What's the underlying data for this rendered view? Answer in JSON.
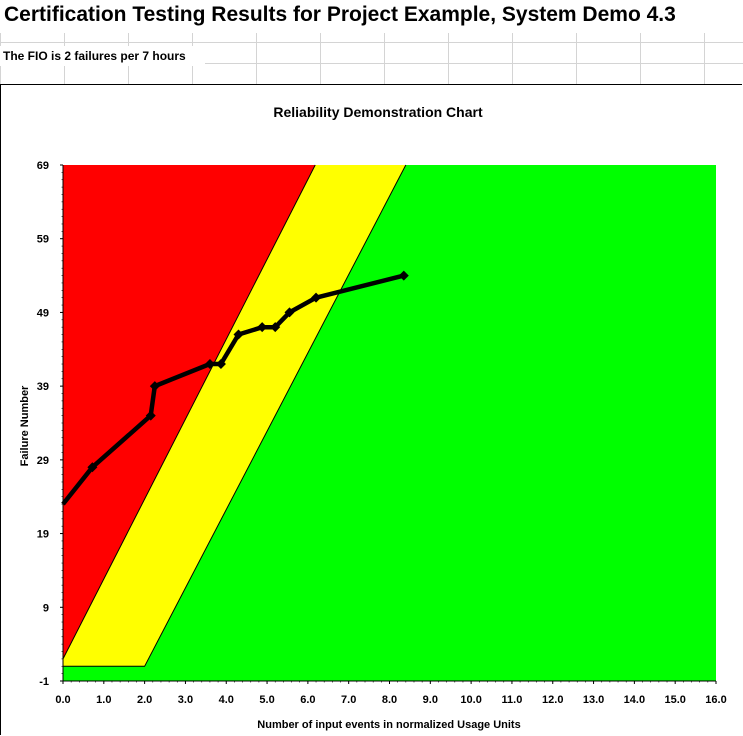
{
  "sheet": {
    "title": "Certification Testing Results for Project Example, System Demo 4.3",
    "fio_text": "The FIO is 2 failures per 7 hours"
  },
  "chart_data": {
    "type": "line",
    "title": "Reliability Demonstration Chart",
    "xlabel": "Number of input events in normalized Usage Units",
    "ylabel": "Failure Number",
    "xlim": [
      0,
      16
    ],
    "ylim": [
      -1,
      69
    ],
    "xticks": [
      "0.0",
      "1.0",
      "2.0",
      "3.0",
      "4.0",
      "5.0",
      "6.0",
      "7.0",
      "8.0",
      "9.0",
      "10.0",
      "11.0",
      "12.0",
      "13.0",
      "14.0",
      "15.0",
      "16.0"
    ],
    "yticks": [
      "-1",
      "9",
      "19",
      "29",
      "39",
      "49",
      "59",
      "69"
    ],
    "regions": {
      "reject": {
        "color": "#ff0000",
        "boundary": [
          [
            0,
            2
          ],
          [
            6.18,
            69
          ]
        ]
      },
      "continue": {
        "color": "#ffff00"
      },
      "accept": {
        "color": "#00ff00",
        "boundary": [
          [
            0,
            1
          ],
          [
            2.0,
            1
          ],
          [
            8.4,
            69
          ]
        ]
      }
    },
    "series": [
      {
        "color": "#000000",
        "x": [
          0.0,
          0.72,
          2.15,
          2.25,
          3.6,
          3.87,
          4.3,
          4.88,
          5.2,
          5.55,
          6.2,
          8.35
        ],
        "y": [
          23,
          28,
          35,
          39,
          42,
          42,
          46,
          47,
          47,
          49,
          51,
          54
        ]
      }
    ],
    "grid": false,
    "legend": "none"
  }
}
